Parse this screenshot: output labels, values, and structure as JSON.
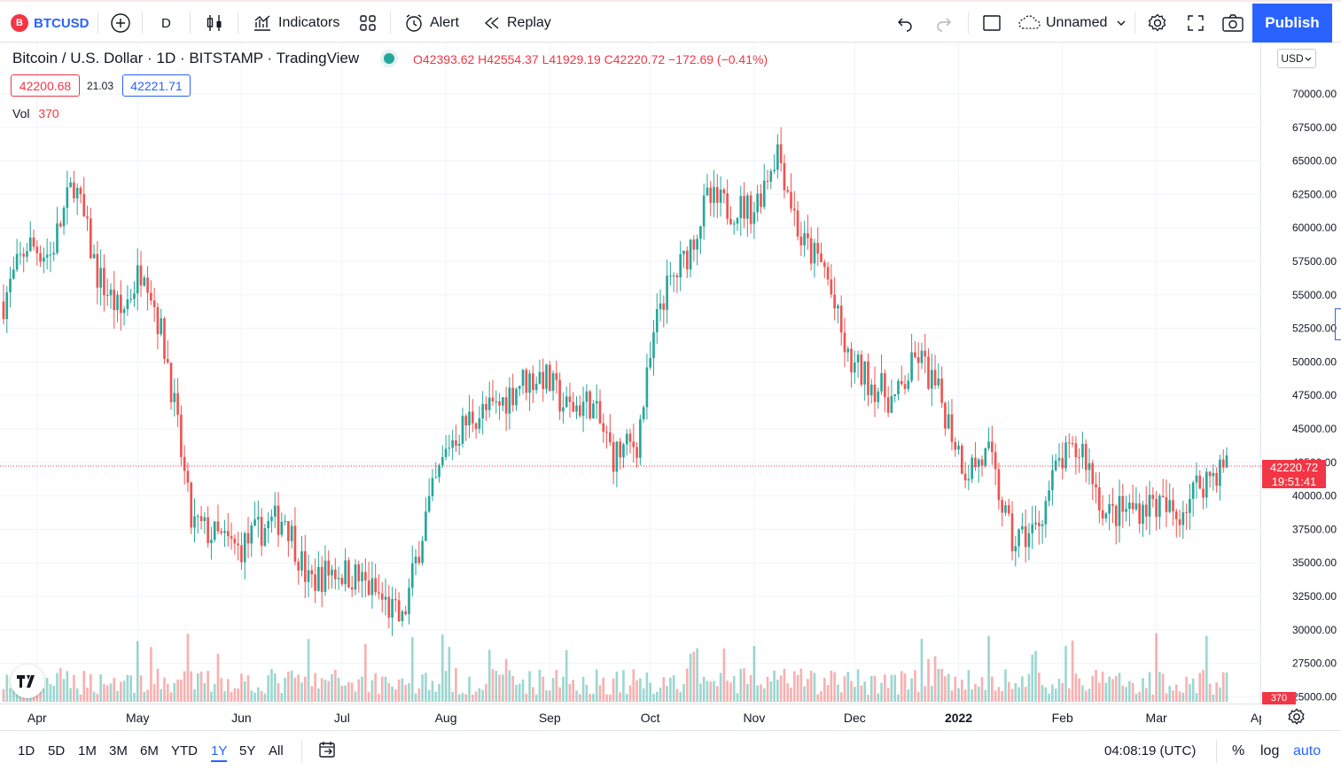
{
  "toolbar": {
    "symbol": "BTCUSD",
    "symbol_badge": "B",
    "interval": "D",
    "indicators": "Indicators",
    "alert": "Alert",
    "replay": "Replay",
    "layout_name": "Unnamed",
    "publish": "Publish"
  },
  "legend": {
    "title": "Bitcoin / U.S. Dollar · 1D · BITSTAMP · TradingView",
    "ohlc": "O42393.62  H42554.37  L41929.19  C42220.72  −172.69 (−0.41%)",
    "bid": "42200.68",
    "spread": "21.03",
    "ask": "42221.71",
    "vol_label": "Vol",
    "vol_value": "370"
  },
  "price_axis": {
    "currency": "USD",
    "ticks": [
      "70000.00",
      "67500.00",
      "65000.00",
      "62500.00",
      "60000.00",
      "57500.00",
      "55000.00",
      "52500.00",
      "50000.00",
      "47500.00",
      "45000.00",
      "42500.00",
      "40000.00",
      "37500.00",
      "35000.00",
      "32500.00",
      "30000.00",
      "27500.00",
      "25000.00"
    ],
    "last_price": "42220.72",
    "countdown": "19:51:41",
    "vol_tag": "370"
  },
  "time_axis": {
    "labels": [
      "Apr",
      "May",
      "Jun",
      "Jul",
      "Aug",
      "Sep",
      "Oct",
      "Nov",
      "Dec",
      "2022",
      "Feb",
      "Mar",
      "Apr"
    ]
  },
  "bottombar": {
    "ranges": [
      "1D",
      "5D",
      "1M",
      "3M",
      "6M",
      "YTD",
      "1Y",
      "5Y",
      "All"
    ],
    "active_range": "1Y",
    "clock": "04:08:19 (UTC)",
    "percent": "%",
    "log": "log",
    "auto": "auto"
  },
  "colors": {
    "up": "#26a69a",
    "down": "#ef5350",
    "accent": "#2962ff"
  },
  "chart_data": {
    "type": "candlestick",
    "x_range": [
      "2021-03-22",
      "2022-03-22"
    ],
    "ylim": [
      25000,
      72500
    ],
    "last_price": 42220.72,
    "weekly_path": [
      [
        "2021-03-22",
        54500
      ],
      [
        "2021-03-29",
        58800
      ],
      [
        "2021-04-05",
        58000
      ],
      [
        "2021-04-12",
        63500
      ],
      [
        "2021-04-19",
        56500
      ],
      [
        "2021-04-26",
        53500
      ],
      [
        "2021-05-03",
        57500
      ],
      [
        "2021-05-10",
        50000
      ],
      [
        "2021-05-17",
        38000
      ],
      [
        "2021-05-24",
        37000
      ],
      [
        "2021-05-31",
        36000
      ],
      [
        "2021-06-07",
        37500
      ],
      [
        "2021-06-14",
        38500
      ],
      [
        "2021-06-21",
        33500
      ],
      [
        "2021-06-28",
        34500
      ],
      [
        "2021-07-05",
        34000
      ],
      [
        "2021-07-12",
        32500
      ],
      [
        "2021-07-19",
        30500
      ],
      [
        "2021-07-26",
        38500
      ],
      [
        "2021-08-02",
        44000
      ],
      [
        "2021-08-09",
        46000
      ],
      [
        "2021-08-16",
        46500
      ],
      [
        "2021-08-23",
        48500
      ],
      [
        "2021-08-30",
        49000
      ],
      [
        "2021-09-06",
        46500
      ],
      [
        "2021-09-13",
        47000
      ],
      [
        "2021-09-20",
        43000
      ],
      [
        "2021-09-27",
        44000
      ],
      [
        "2021-10-04",
        54500
      ],
      [
        "2021-10-11",
        57500
      ],
      [
        "2021-10-18",
        62000
      ],
      [
        "2021-10-25",
        61500
      ],
      [
        "2021-11-01",
        61500
      ],
      [
        "2021-11-08",
        66000
      ],
      [
        "2021-11-15",
        59000
      ],
      [
        "2021-11-22",
        57000
      ],
      [
        "2021-11-29",
        50000
      ],
      [
        "2021-12-06",
        48500
      ],
      [
        "2021-12-13",
        47000
      ],
      [
        "2021-12-20",
        50500
      ],
      [
        "2021-12-27",
        47000
      ],
      [
        "2022-01-03",
        42000
      ],
      [
        "2022-01-10",
        43000
      ],
      [
        "2022-01-17",
        36500
      ],
      [
        "2022-01-24",
        37500
      ],
      [
        "2022-01-31",
        42500
      ],
      [
        "2022-02-07",
        43500
      ],
      [
        "2022-02-14",
        38500
      ],
      [
        "2022-02-21",
        39000
      ],
      [
        "2022-02-28",
        39500
      ],
      [
        "2022-03-07",
        38500
      ],
      [
        "2022-03-14",
        41000
      ],
      [
        "2022-03-21",
        42220
      ]
    ],
    "extremes": {
      "high": {
        "date": "2021-11-10",
        "price": 69000
      },
      "low": {
        "date": "2021-07-20",
        "price": 29300
      }
    }
  }
}
